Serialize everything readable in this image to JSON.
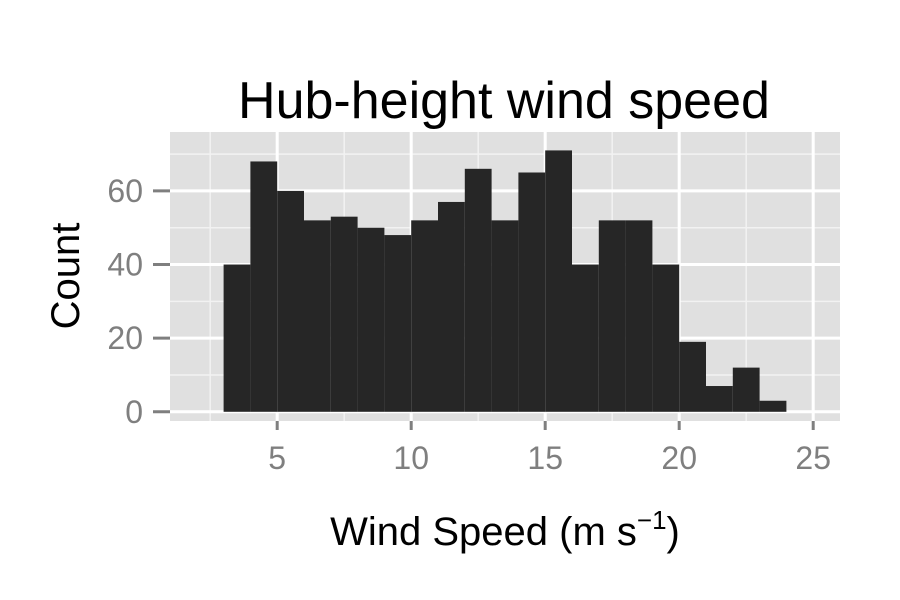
{
  "chart_data": {
    "type": "bar",
    "title": "Hub-height wind speed",
    "xlabel": "Wind Speed (m s",
    "xlabel_superscript": "−1",
    "xlabel_suffix": ")",
    "ylabel": "Count",
    "xlim": [
      1,
      26
    ],
    "ylim": [
      -2.5,
      76
    ],
    "x_ticks": [
      5,
      10,
      15,
      20,
      25
    ],
    "y_ticks": [
      0,
      20,
      40,
      60
    ],
    "grid": true,
    "panel_background": "#e0e0e0",
    "bar_color": "#262626",
    "bin_width": 1,
    "bins": [
      {
        "x": 3,
        "count": 40
      },
      {
        "x": 4,
        "count": 68
      },
      {
        "x": 5,
        "count": 60
      },
      {
        "x": 6,
        "count": 52
      },
      {
        "x": 7,
        "count": 53
      },
      {
        "x": 8,
        "count": 50
      },
      {
        "x": 9,
        "count": 48
      },
      {
        "x": 10,
        "count": 52
      },
      {
        "x": 11,
        "count": 57
      },
      {
        "x": 12,
        "count": 66
      },
      {
        "x": 13,
        "count": 52
      },
      {
        "x": 14,
        "count": 65
      },
      {
        "x": 15,
        "count": 71
      },
      {
        "x": 16,
        "count": 40
      },
      {
        "x": 17,
        "count": 52
      },
      {
        "x": 18,
        "count": 52
      },
      {
        "x": 19,
        "count": 40
      },
      {
        "x": 20,
        "count": 19
      },
      {
        "x": 21,
        "count": 7
      },
      {
        "x": 22,
        "count": 12
      },
      {
        "x": 23,
        "count": 3
      }
    ]
  }
}
